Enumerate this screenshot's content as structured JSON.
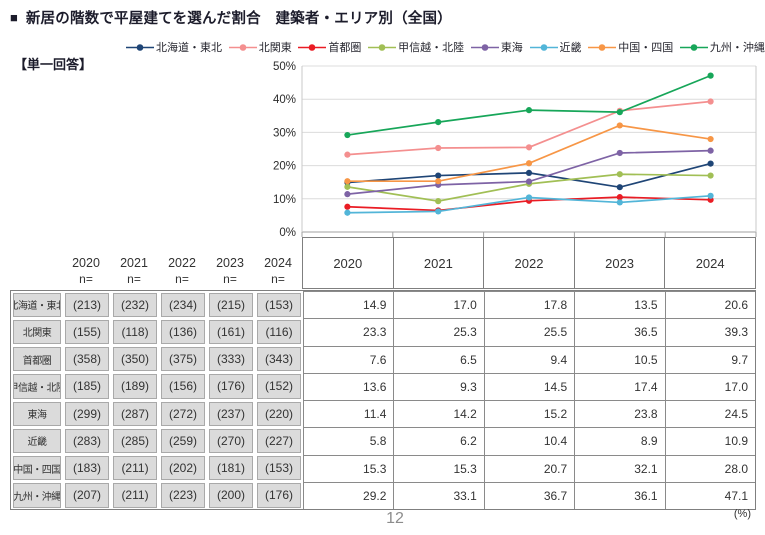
{
  "page": {
    "title_bullet": "■",
    "title": "新居の階数で平屋建てを選んだ割合　建築者・エリア別（全国）",
    "question_type": "【単一回答】",
    "page_number": "12",
    "unit_note": "(%)"
  },
  "chart_data": {
    "type": "line",
    "title": "新居の階数で平屋建てを選んだ割合　建築者・エリア別（全国）",
    "x_years": [
      "2020",
      "2021",
      "2022",
      "2023",
      "2024"
    ],
    "ylim": [
      0,
      50
    ],
    "ytick_step": 10,
    "ytick_suffix": "%",
    "grid": true,
    "legend_position": "top",
    "colors": {
      "grid": "#dcdcdc",
      "axis": "#a0a0a0",
      "plot_border": "#c9c9c9"
    },
    "series": [
      {
        "name": "北海道・東北",
        "color": "#1f4576",
        "values": [
          14.9,
          17.0,
          17.8,
          13.5,
          20.6
        ],
        "n": [
          213,
          232,
          234,
          215,
          153
        ]
      },
      {
        "name": "北関東",
        "color": "#f48f8f",
        "values": [
          23.3,
          25.3,
          25.5,
          36.5,
          39.3
        ],
        "n": [
          155,
          118,
          136,
          161,
          116
        ]
      },
      {
        "name": "首都圏",
        "color": "#ea1c24",
        "values": [
          7.6,
          6.5,
          9.4,
          10.5,
          9.7
        ],
        "n": [
          358,
          350,
          375,
          333,
          343
        ]
      },
      {
        "name": "甲信越・北陸",
        "color": "#a1bf55",
        "values": [
          13.6,
          9.3,
          14.5,
          17.4,
          17.0
        ],
        "n": [
          185,
          189,
          156,
          176,
          152
        ]
      },
      {
        "name": "東海",
        "color": "#7e63a5",
        "values": [
          11.4,
          14.2,
          15.2,
          23.8,
          24.5
        ],
        "n": [
          299,
          287,
          272,
          237,
          220
        ]
      },
      {
        "name": "近畿",
        "color": "#52b5d8",
        "values": [
          5.8,
          6.2,
          10.4,
          8.9,
          10.9
        ],
        "n": [
          283,
          285,
          259,
          270,
          227
        ]
      },
      {
        "name": "中国・四国",
        "color": "#f79646",
        "values": [
          15.3,
          15.3,
          20.7,
          32.1,
          28.0
        ],
        "n": [
          183,
          211,
          202,
          181,
          153
        ]
      },
      {
        "name": "九州・沖縄",
        "color": "#17a659",
        "values": [
          29.2,
          33.1,
          36.7,
          36.1,
          47.1
        ],
        "n": [
          207,
          211,
          223,
          200,
          176
        ]
      }
    ]
  },
  "table": {
    "n_label": "n=",
    "n_header_years": [
      "2020",
      "2021",
      "2022",
      "2023",
      "2024"
    ],
    "year_headers": [
      "2020",
      "2021",
      "2022",
      "2023",
      "2024"
    ]
  }
}
